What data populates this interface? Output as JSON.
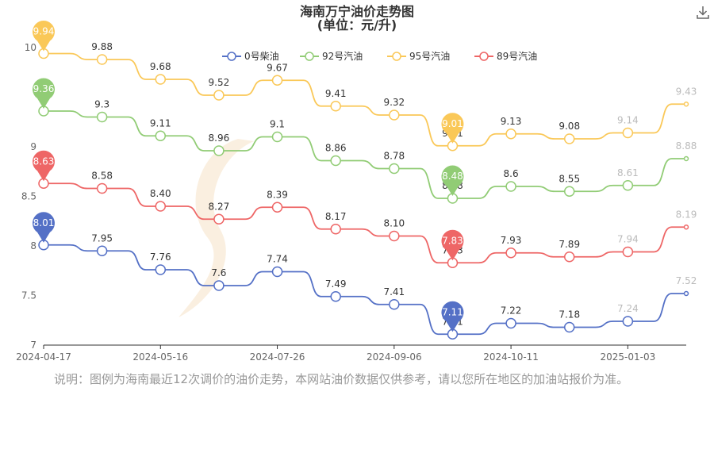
{
  "chart_data": {
    "type": "line",
    "title": "海南万宁油价走势图",
    "subtitle": "(单位：元/升)",
    "ylim": [
      7,
      10
    ],
    "yticks": [
      7,
      7.5,
      8,
      8.5,
      9,
      10
    ],
    "x_tick_labels": [
      "2024-04-17",
      "2024-05-16",
      "2024-07-26",
      "2024-09-06",
      "2024-10-11",
      "2025-01-03"
    ],
    "x_tick_index": [
      0,
      2,
      4,
      6,
      8,
      10
    ],
    "legend_position": "top",
    "grid": false,
    "series": [
      {
        "name": "0号柴油",
        "color": "#5470c6",
        "values": [
          8.01,
          7.95,
          7.76,
          7.6,
          7.74,
          7.49,
          7.41,
          7.11,
          7.22,
          7.18,
          7.24,
          7.52
        ],
        "labels": [
          "",
          "7.95",
          "7.76",
          "7.6",
          "7.74",
          "7.49",
          "7.41",
          "7.11",
          "7.22",
          "7.18",
          "7.24",
          "7.52"
        ],
        "max_label": "8.01",
        "min_label": "7.11"
      },
      {
        "name": "92号汽油",
        "color": "#91cc75",
        "values": [
          9.36,
          9.3,
          9.11,
          8.96,
          9.1,
          8.86,
          8.78,
          8.48,
          8.6,
          8.55,
          8.61,
          8.88
        ],
        "labels": [
          "",
          "9.3",
          "9.11",
          "8.96",
          "9.1",
          "8.86",
          "8.78",
          "8.48",
          "8.6",
          "8.55",
          "8.61",
          "8.88"
        ],
        "max_label": "9.36",
        "min_label": "8.48"
      },
      {
        "name": "95号汽油",
        "color": "#fac858",
        "values": [
          9.94,
          9.88,
          9.68,
          9.52,
          9.67,
          9.41,
          9.32,
          9.01,
          9.13,
          9.08,
          9.14,
          9.43
        ],
        "labels": [
          "",
          "9.88",
          "9.68",
          "9.52",
          "9.67",
          "9.41",
          "9.32",
          "9.01",
          "9.13",
          "9.08",
          "9.14",
          "9.43"
        ],
        "max_label": "9.94",
        "min_label": "9.01"
      },
      {
        "name": "89号汽油",
        "color": "#ee6666",
        "values": [
          8.63,
          8.58,
          8.4,
          8.27,
          8.39,
          8.17,
          8.1,
          7.83,
          7.93,
          7.89,
          7.94,
          8.19
        ],
        "labels": [
          "",
          "8.58",
          "8.40",
          "8.27",
          "8.39",
          "8.17",
          "8.10",
          "7.83",
          "7.93",
          "7.89",
          "7.94",
          "8.19"
        ],
        "max_label": "8.63",
        "min_label": "7.83"
      }
    ]
  },
  "note": "说明：图例为海南最近12次调价的油价走势，本网站油价数据仅供参考，请以您所在地区的加油站报价为准。"
}
